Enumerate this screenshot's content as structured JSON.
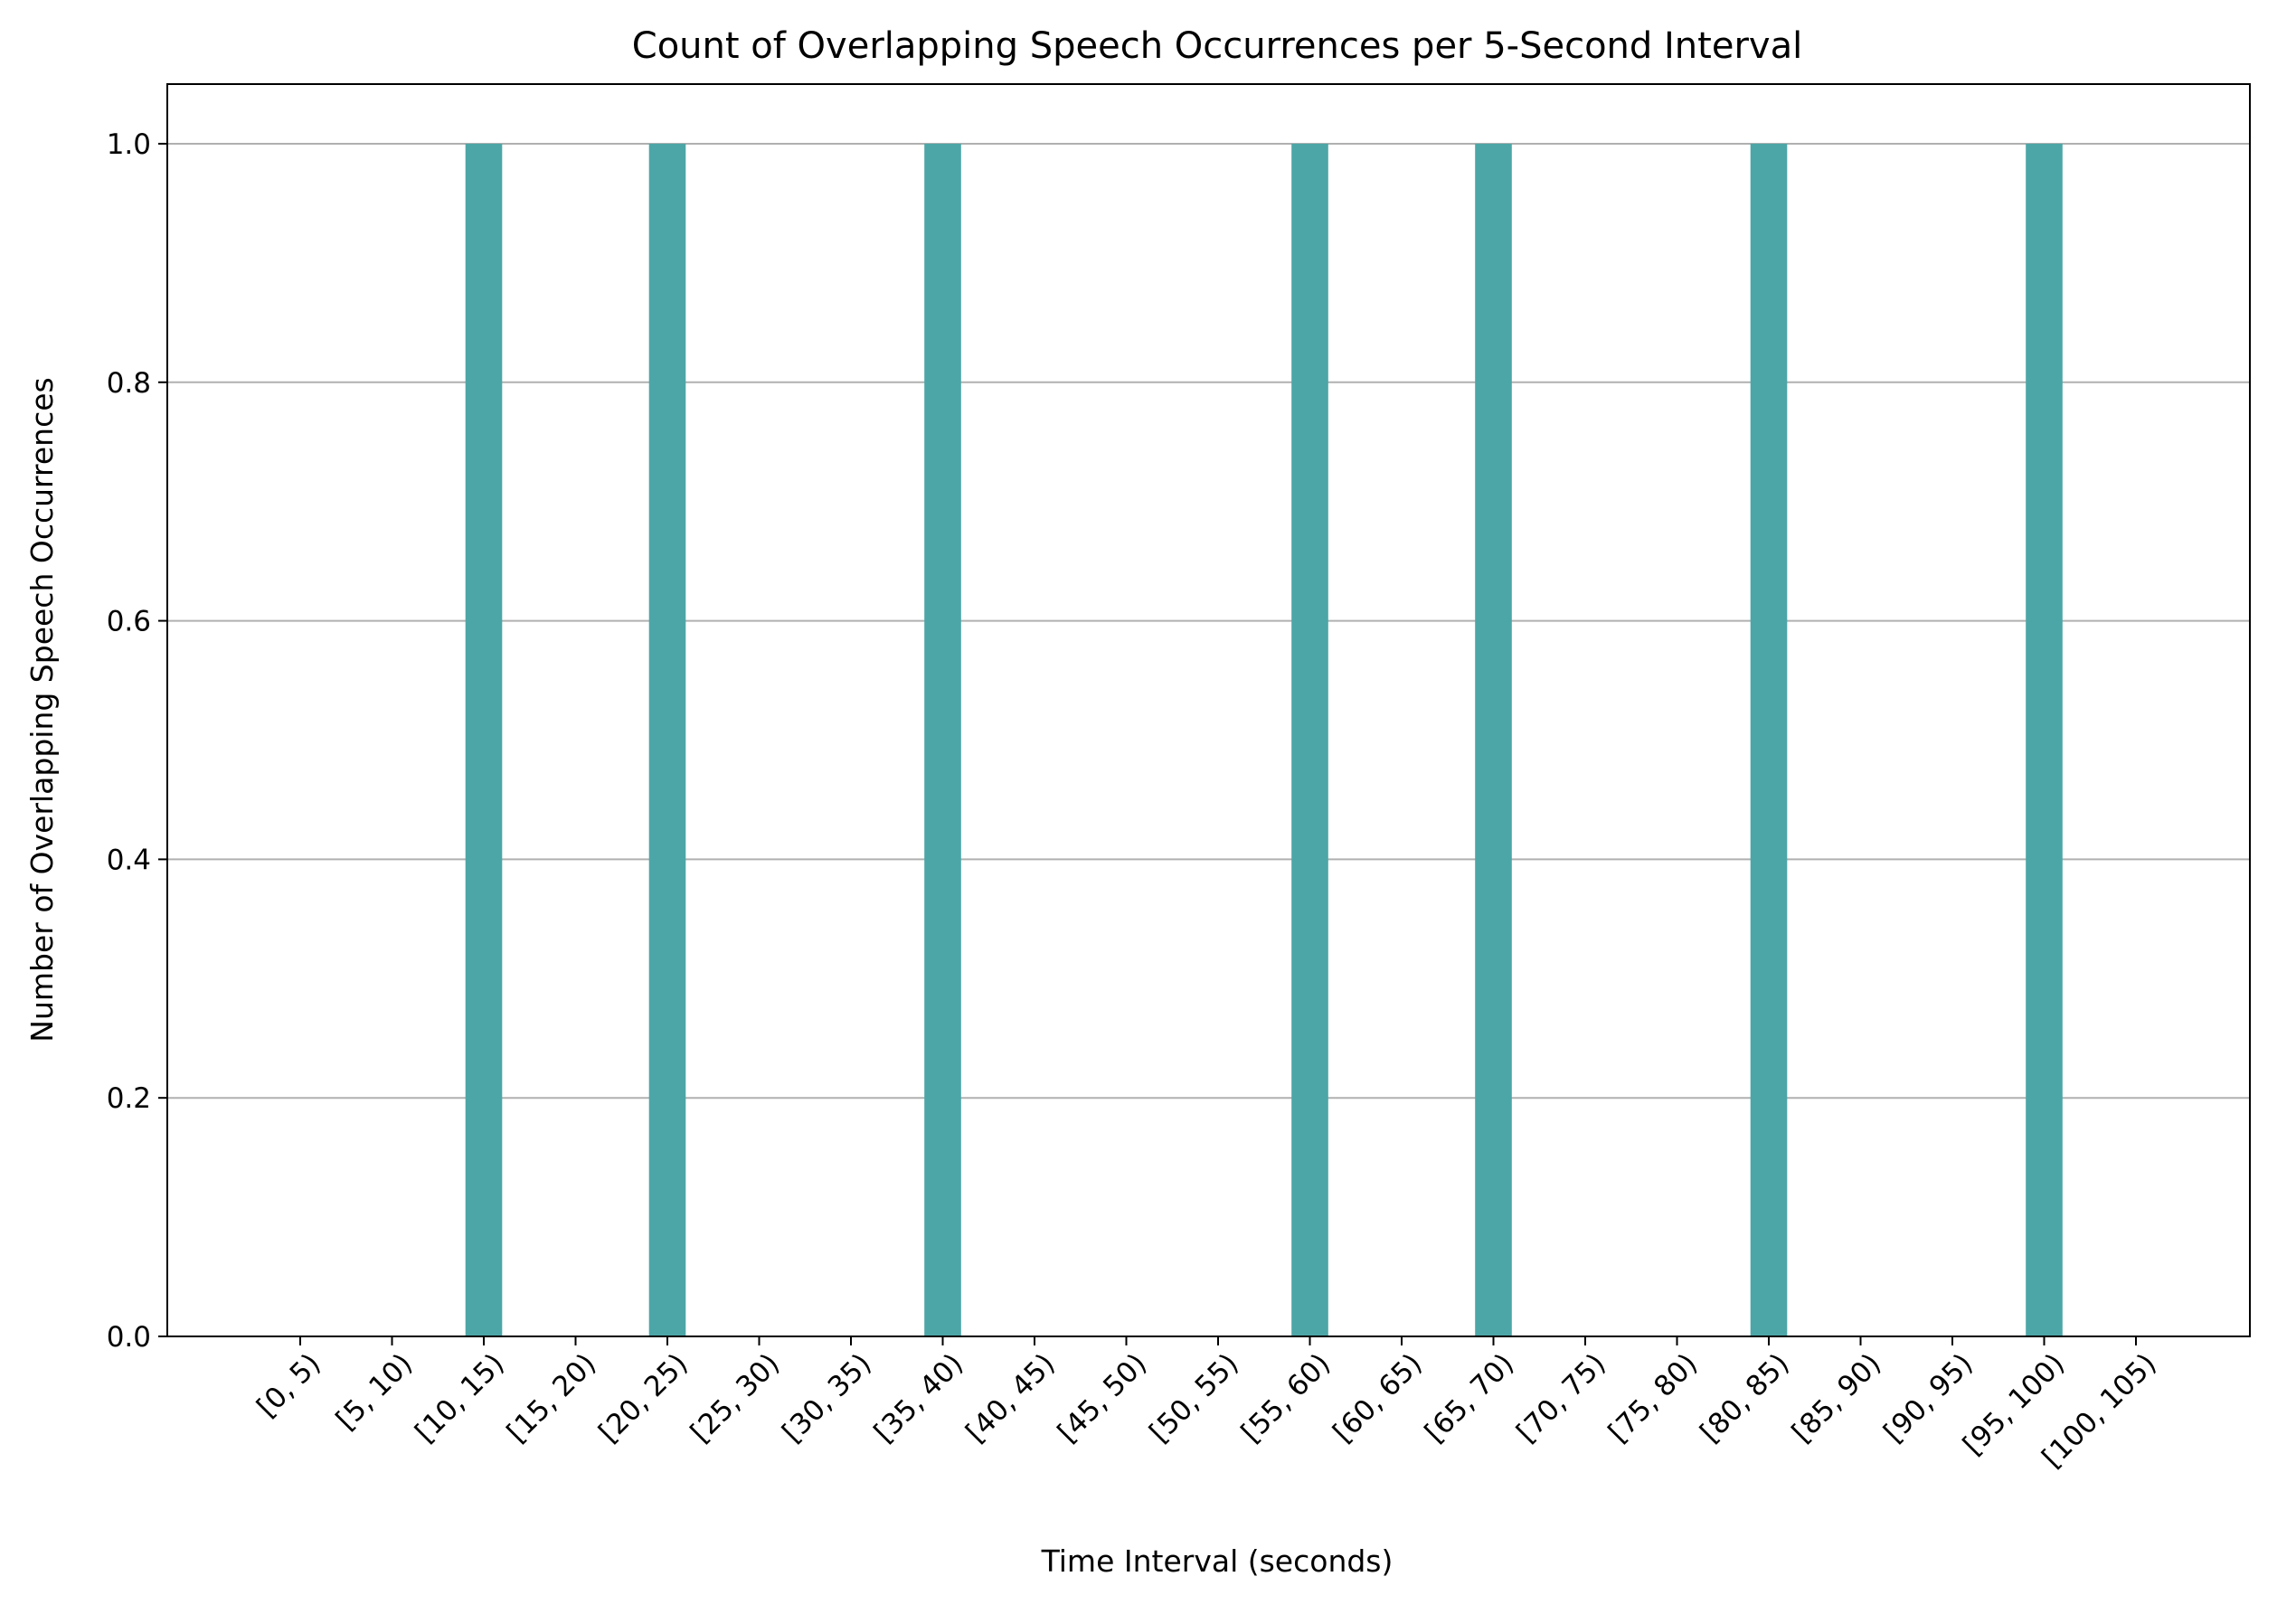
{
  "chart_data": {
    "type": "bar",
    "title": "Count of Overlapping Speech Occurrences per 5-Second Interval",
    "xlabel": "Time Interval (seconds)",
    "ylabel": "Number of Overlapping Speech Occurrences",
    "categories": [
      "[0, 5)",
      "[5, 10)",
      "[10, 15)",
      "[15, 20)",
      "[20, 25)",
      "[25, 30)",
      "[30, 35)",
      "[35, 40)",
      "[40, 45)",
      "[45, 50)",
      "[50, 55)",
      "[55, 60)",
      "[60, 65)",
      "[65, 70)",
      "[70, 75)",
      "[75, 80)",
      "[80, 85)",
      "[85, 90)",
      "[90, 95)",
      "[95, 100)",
      "[100, 105)"
    ],
    "values": [
      0,
      0,
      1,
      0,
      1,
      0,
      0,
      1,
      0,
      0,
      0,
      1,
      0,
      1,
      0,
      0,
      1,
      0,
      0,
      1,
      0
    ],
    "ylim": [
      0,
      1.05
    ],
    "yticks": [
      "0.0",
      "0.2",
      "0.4",
      "0.6",
      "0.8",
      "1.0"
    ],
    "grid": "y",
    "bar_color": "#4ca5a6",
    "grid_color": "#b0b0b0"
  }
}
